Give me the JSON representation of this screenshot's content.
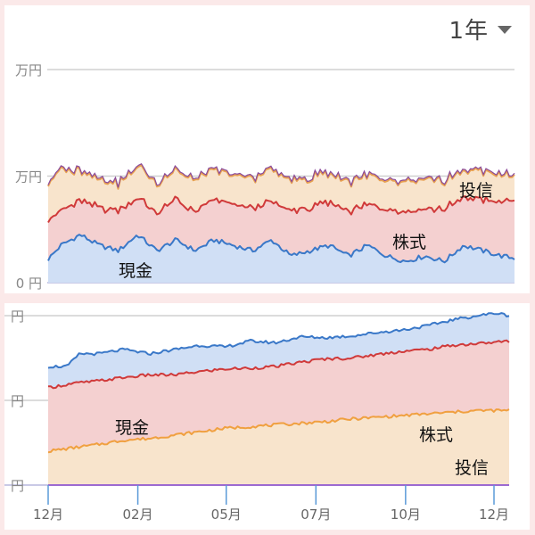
{
  "period_selector": {
    "label": "1年",
    "icon": "caret-down-icon"
  },
  "chart_data": [
    {
      "type": "area",
      "stacked": true,
      "ytick_labels": [
        "万円",
        "万円",
        "0 円"
      ],
      "ytick_values": [
        20,
        10,
        0
      ],
      "ylim": [
        0,
        21
      ],
      "xlim": [
        0,
        365
      ],
      "grid": true,
      "series": [
        {
          "name": "現金",
          "label": "現金",
          "color": "#3a78c8",
          "fill": "#d0dff5",
          "values": [
            [
              0,
              2.2
            ],
            [
              10,
              3.5
            ],
            [
              25,
              4.5
            ],
            [
              40,
              3.5
            ],
            [
              55,
              3.0
            ],
            [
              70,
              4.5
            ],
            [
              85,
              3.0
            ],
            [
              100,
              4.0
            ],
            [
              115,
              3.0
            ],
            [
              130,
              4.0
            ],
            [
              145,
              3.5
            ],
            [
              160,
              3.0
            ],
            [
              175,
              4.0
            ],
            [
              190,
              2.5
            ],
            [
              205,
              3.0
            ],
            [
              220,
              3.5
            ],
            [
              235,
              2.5
            ],
            [
              250,
              3.5
            ],
            [
              265,
              2.5
            ],
            [
              280,
              2.0
            ],
            [
              295,
              2.5
            ],
            [
              310,
              2.0
            ],
            [
              325,
              3.5
            ],
            [
              340,
              3.0
            ],
            [
              355,
              2.5
            ],
            [
              365,
              2.3
            ]
          ]
        },
        {
          "name": "株式",
          "label": "株式",
          "color": "#d03a3a",
          "fill": "#f4d0d0",
          "values": [
            [
              0,
              3.8
            ],
            [
              10,
              3.2
            ],
            [
              25,
              3.2
            ],
            [
              40,
              3.5
            ],
            [
              55,
              3.8
            ],
            [
              70,
              3.5
            ],
            [
              85,
              3.5
            ],
            [
              100,
              3.8
            ],
            [
              115,
              3.6
            ],
            [
              130,
              3.8
            ],
            [
              145,
              3.8
            ],
            [
              160,
              4.0
            ],
            [
              175,
              3.6
            ],
            [
              190,
              4.2
            ],
            [
              205,
              4.0
            ],
            [
              220,
              4.0
            ],
            [
              235,
              4.2
            ],
            [
              250,
              3.8
            ],
            [
              265,
              4.5
            ],
            [
              280,
              4.7
            ],
            [
              295,
              4.5
            ],
            [
              310,
              4.9
            ],
            [
              325,
              4.5
            ],
            [
              340,
              4.8
            ],
            [
              355,
              5.0
            ],
            [
              365,
              5.6
            ]
          ]
        },
        {
          "name": "投信",
          "label": "投信",
          "color": "#e8a050",
          "fill": "#f8e4cc",
          "values": [
            [
              0,
              3.5
            ],
            [
              10,
              3.8
            ],
            [
              25,
              2.8
            ],
            [
              40,
              2.7
            ],
            [
              55,
              2.5
            ],
            [
              70,
              3.0
            ],
            [
              85,
              2.8
            ],
            [
              100,
              2.7
            ],
            [
              115,
              3.0
            ],
            [
              130,
              2.7
            ],
            [
              145,
              2.7
            ],
            [
              160,
              2.8
            ],
            [
              175,
              3.0
            ],
            [
              190,
              2.8
            ],
            [
              205,
              2.8
            ],
            [
              220,
              2.7
            ],
            [
              235,
              2.8
            ],
            [
              250,
              2.7
            ],
            [
              265,
              2.6
            ],
            [
              280,
              2.8
            ],
            [
              295,
              2.7
            ],
            [
              310,
              2.6
            ],
            [
              325,
              2.5
            ],
            [
              340,
              2.7
            ],
            [
              355,
              2.5
            ],
            [
              365,
              2.3
            ]
          ]
        }
      ]
    },
    {
      "type": "area",
      "stacked": false,
      "ytick_labels": [
        "円",
        "円",
        "円"
      ],
      "ytick_values": [
        20,
        10,
        0
      ],
      "ylim": [
        0,
        20
      ],
      "xlim": [
        0,
        365
      ],
      "grid": true,
      "xtick_labels": [
        "12月",
        "02月",
        "05月",
        "07月",
        "10月",
        "12月"
      ],
      "xtick_values": [
        0,
        71,
        141,
        212,
        283,
        353
      ],
      "series": [
        {
          "name": "現金",
          "label": "現金",
          "color": "#3a78c8",
          "fill": "#d0dff5",
          "values": [
            [
              0,
              14.0
            ],
            [
              15,
              14.0
            ],
            [
              25,
              15.5
            ],
            [
              40,
              15.5
            ],
            [
              60,
              16.0
            ],
            [
              80,
              15.5
            ],
            [
              100,
              16.0
            ],
            [
              120,
              16.5
            ],
            [
              140,
              16.3
            ],
            [
              160,
              17.0
            ],
            [
              180,
              16.8
            ],
            [
              200,
              17.5
            ],
            [
              220,
              17.4
            ],
            [
              240,
              17.6
            ],
            [
              260,
              18.0
            ],
            [
              280,
              18.3
            ],
            [
              300,
              18.8
            ],
            [
              320,
              19.5
            ],
            [
              340,
              20.0
            ],
            [
              355,
              20.3
            ],
            [
              365,
              20.0
            ]
          ]
        },
        {
          "name": "株式",
          "label": "株式",
          "color": "#d03a3a",
          "fill": "#f4d0d0",
          "values": [
            [
              0,
              11.5
            ],
            [
              20,
              12.0
            ],
            [
              40,
              12.3
            ],
            [
              60,
              12.7
            ],
            [
              80,
              13.0
            ],
            [
              100,
              13.0
            ],
            [
              120,
              13.4
            ],
            [
              140,
              13.7
            ],
            [
              160,
              13.8
            ],
            [
              180,
              14.0
            ],
            [
              200,
              14.5
            ],
            [
              220,
              14.9
            ],
            [
              240,
              15.0
            ],
            [
              260,
              15.4
            ],
            [
              280,
              15.8
            ],
            [
              300,
              16.0
            ],
            [
              320,
              16.5
            ],
            [
              340,
              16.7
            ],
            [
              365,
              17.0
            ]
          ]
        },
        {
          "name": "投信",
          "label": "投信",
          "color": "#f0a040",
          "fill": "#f8e4cc",
          "values": [
            [
              0,
              4.0
            ],
            [
              20,
              4.4
            ],
            [
              40,
              4.8
            ],
            [
              60,
              5.3
            ],
            [
              80,
              5.5
            ],
            [
              100,
              5.9
            ],
            [
              120,
              6.3
            ],
            [
              140,
              6.7
            ],
            [
              160,
              6.9
            ],
            [
              180,
              7.1
            ],
            [
              200,
              7.3
            ],
            [
              220,
              7.5
            ],
            [
              240,
              7.8
            ],
            [
              260,
              8.0
            ],
            [
              280,
              8.2
            ],
            [
              300,
              8.4
            ],
            [
              320,
              8.6
            ],
            [
              340,
              8.8
            ],
            [
              365,
              8.8
            ]
          ]
        }
      ]
    }
  ]
}
